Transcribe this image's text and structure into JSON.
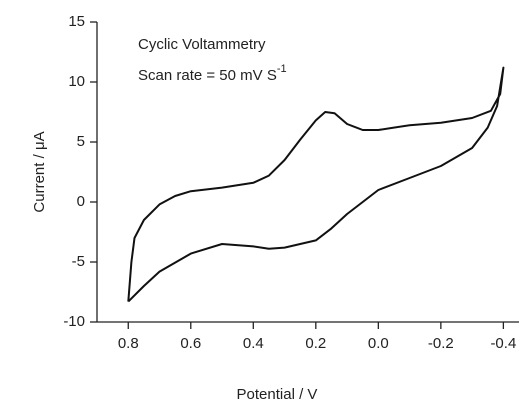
{
  "chart_data": {
    "type": "line",
    "annotations": [
      {
        "text": "Cyclic Voltammetry"
      },
      {
        "text": "Scan rate = 50 mV S",
        "superscript": "-1"
      }
    ],
    "x_label": "Potential / V",
    "y_label": "Current / μA",
    "xlim": [
      0.9,
      -0.45
    ],
    "ylim": [
      -10,
      15
    ],
    "xticks": [
      0.8,
      0.6,
      0.4,
      0.2,
      {
        "value": 0,
        "label": "0.0"
      },
      -0.2,
      -0.4
    ],
    "yticks": [
      -10,
      -5,
      0,
      5,
      10,
      15
    ],
    "grid": false,
    "series": [
      {
        "name": "CV",
        "color": "#111111",
        "x": [
          0.8,
          0.79,
          0.78,
          0.75,
          0.7,
          0.65,
          0.6,
          0.5,
          0.4,
          0.35,
          0.3,
          0.25,
          0.2,
          0.17,
          0.14,
          0.1,
          0.05,
          0.0,
          -0.1,
          -0.2,
          -0.3,
          -0.36,
          -0.39,
          -0.4,
          -0.38,
          -0.35,
          -0.3,
          -0.2,
          -0.1,
          0.0,
          0.05,
          0.1,
          0.15,
          0.2,
          0.3,
          0.35,
          0.4,
          0.5,
          0.6,
          0.7,
          0.75,
          0.8
        ],
        "values": [
          -8.3,
          -5,
          -3,
          -1.5,
          -0.2,
          0.5,
          0.9,
          1.2,
          1.6,
          2.2,
          3.5,
          5.2,
          6.8,
          7.5,
          7.4,
          6.5,
          6.0,
          6.0,
          6.4,
          6.6,
          7.0,
          7.6,
          9,
          11.2,
          8.0,
          6.2,
          4.5,
          3.0,
          2.0,
          1.0,
          0,
          -1,
          -2.2,
          -3.2,
          -3.8,
          -3.9,
          -3.7,
          -3.5,
          -4.3,
          -5.8,
          -7,
          -8.3
        ]
      }
    ]
  }
}
